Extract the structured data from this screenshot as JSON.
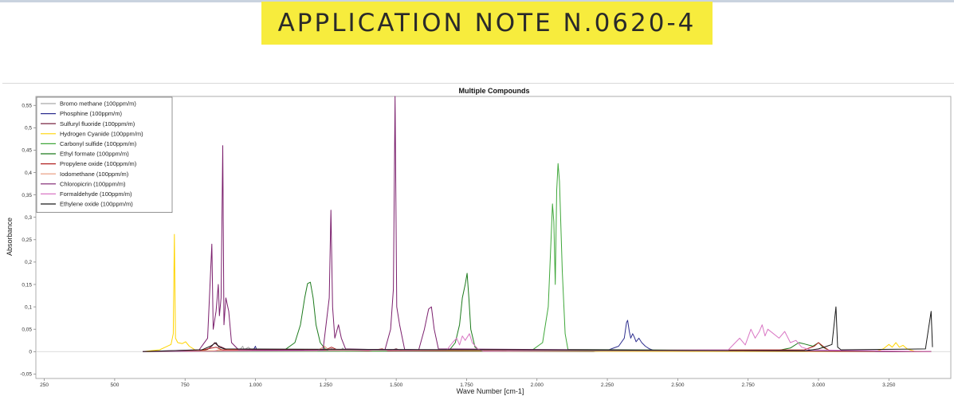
{
  "header": {
    "title": "APPLICATION NOTE N.0620-4"
  },
  "chart_data": {
    "type": "line",
    "title": "Multiple Compounds",
    "xlabel": "Wave Number [cm-1]",
    "ylabel": "Absorbance",
    "xlim": [
      220,
      3470
    ],
    "ylim": [
      -0.06,
      0.57
    ],
    "xticks": [
      250,
      500,
      750,
      1000,
      1250,
      1500,
      1750,
      2000,
      2250,
      2500,
      2750,
      3000,
      3250
    ],
    "xtick_labels": [
      "250",
      "500",
      "750",
      "1.000",
      "1.250",
      "1.500",
      "1.750",
      "2.000",
      "2.250",
      "2.500",
      "2.750",
      "3.000",
      "3.250"
    ],
    "yticks": [
      -0.05,
      0,
      0.05,
      0.1,
      0.15,
      0.2,
      0.25,
      0.3,
      0.35,
      0.4,
      0.45,
      0.5,
      0.55
    ],
    "ytick_labels": [
      "-0,05",
      "0",
      "0,05",
      "0,1",
      "0,15",
      "0,2",
      "0,25",
      "0,3",
      "0,35",
      "0,4",
      "0,45",
      "0,5",
      "0,55"
    ],
    "grid": false,
    "legend_position": "top-left",
    "series": [
      {
        "name": "Bromo methane (100ppm/m)",
        "color": "#a9a9a9",
        "points": [
          [
            600,
            0
          ],
          [
            940,
            0.001
          ],
          [
            955,
            0.012
          ],
          [
            960,
            0.004
          ],
          [
            975,
            0.01
          ],
          [
            990,
            0.002
          ],
          [
            1300,
            0.001
          ],
          [
            1310,
            0.008
          ],
          [
            1320,
            0.001
          ],
          [
            3400,
            0
          ]
        ]
      },
      {
        "name": "Phosphine (100ppm/m)",
        "color": "#2e2f8f",
        "points": [
          [
            600,
            0
          ],
          [
            990,
            0.001
          ],
          [
            1000,
            0.012
          ],
          [
            1005,
            0.002
          ],
          [
            2200,
            0
          ],
          [
            2250,
            0.003
          ],
          [
            2290,
            0.012
          ],
          [
            2310,
            0.03
          ],
          [
            2318,
            0.065
          ],
          [
            2322,
            0.07
          ],
          [
            2328,
            0.045
          ],
          [
            2333,
            0.03
          ],
          [
            2340,
            0.04
          ],
          [
            2346,
            0.032
          ],
          [
            2352,
            0.022
          ],
          [
            2362,
            0.03
          ],
          [
            2372,
            0.02
          ],
          [
            2385,
            0.012
          ],
          [
            2400,
            0.006
          ],
          [
            2420,
            0.002
          ],
          [
            3400,
            0
          ]
        ]
      },
      {
        "name": "Sulfuryl fluoride (100ppm/m)",
        "color": "#6a0d2e",
        "points": [
          [
            600,
            0
          ],
          [
            800,
            0.001
          ],
          [
            830,
            0.005
          ],
          [
            845,
            0.012
          ],
          [
            855,
            0.02
          ],
          [
            865,
            0.014
          ],
          [
            880,
            0.01
          ],
          [
            900,
            0.004
          ],
          [
            1250,
            0.002
          ],
          [
            1270,
            0.006
          ],
          [
            1285,
            0.003
          ],
          [
            1480,
            0.003
          ],
          [
            1500,
            0.006
          ],
          [
            1520,
            0.002
          ],
          [
            3400,
            0
          ]
        ]
      },
      {
        "name": "Hydrogen Cyanide (100ppm/m)",
        "color": "#ffd400",
        "points": [
          [
            600,
            0
          ],
          [
            660,
            0.004
          ],
          [
            680,
            0.01
          ],
          [
            700,
            0.016
          ],
          [
            708,
            0.04
          ],
          [
            712,
            0.262
          ],
          [
            716,
            0.03
          ],
          [
            724,
            0.02
          ],
          [
            740,
            0.018
          ],
          [
            752,
            0.022
          ],
          [
            765,
            0.012
          ],
          [
            790,
            0.002
          ],
          [
            3200,
            0
          ],
          [
            3230,
            0.006
          ],
          [
            3250,
            0.016
          ],
          [
            3262,
            0.01
          ],
          [
            3275,
            0.02
          ],
          [
            3287,
            0.01
          ],
          [
            3300,
            0.014
          ],
          [
            3315,
            0.006
          ],
          [
            3340,
            0.001
          ],
          [
            3400,
            0
          ]
        ]
      },
      {
        "name": "Carbonyl sulfide (100ppm/m)",
        "color": "#3fa73a",
        "points": [
          [
            600,
            0
          ],
          [
            1980,
            0.002
          ],
          [
            2020,
            0.02
          ],
          [
            2040,
            0.1
          ],
          [
            2050,
            0.25
          ],
          [
            2055,
            0.33
          ],
          [
            2060,
            0.29
          ],
          [
            2065,
            0.15
          ],
          [
            2070,
            0.36
          ],
          [
            2075,
            0.42
          ],
          [
            2080,
            0.38
          ],
          [
            2090,
            0.18
          ],
          [
            2100,
            0.04
          ],
          [
            2110,
            0.005
          ],
          [
            3400,
            0
          ]
        ]
      },
      {
        "name": "Ethyl formate (100ppm/m)",
        "color": "#1c7a1c",
        "points": [
          [
            600,
            0
          ],
          [
            1100,
            0.002
          ],
          [
            1140,
            0.02
          ],
          [
            1160,
            0.06
          ],
          [
            1175,
            0.12
          ],
          [
            1185,
            0.152
          ],
          [
            1195,
            0.155
          ],
          [
            1205,
            0.12
          ],
          [
            1215,
            0.06
          ],
          [
            1230,
            0.02
          ],
          [
            1250,
            0.004
          ],
          [
            1690,
            0.004
          ],
          [
            1710,
            0.02
          ],
          [
            1725,
            0.06
          ],
          [
            1735,
            0.12
          ],
          [
            1745,
            0.15
          ],
          [
            1752,
            0.175
          ],
          [
            1758,
            0.12
          ],
          [
            1765,
            0.05
          ],
          [
            1780,
            0.01
          ],
          [
            1800,
            0.002
          ],
          [
            2850,
            0.002
          ],
          [
            2900,
            0.008
          ],
          [
            2930,
            0.02
          ],
          [
            2945,
            0.018
          ],
          [
            2980,
            0.012
          ],
          [
            3000,
            0.02
          ],
          [
            3015,
            0.01
          ],
          [
            3040,
            0.002
          ],
          [
            3400,
            0
          ]
        ]
      },
      {
        "name": "Propylene oxide (100ppm/m)",
        "color": "#b22222",
        "points": [
          [
            600,
            0
          ],
          [
            800,
            0.002
          ],
          [
            830,
            0.006
          ],
          [
            860,
            0.01
          ],
          [
            880,
            0.004
          ],
          [
            1250,
            0.004
          ],
          [
            1270,
            0.01
          ],
          [
            1290,
            0.004
          ],
          [
            1400,
            0.002
          ],
          [
            1450,
            0.006
          ],
          [
            1470,
            0.002
          ],
          [
            2950,
            0.004
          ],
          [
            2985,
            0.012
          ],
          [
            3000,
            0.02
          ],
          [
            3020,
            0.01
          ],
          [
            3040,
            0.002
          ],
          [
            3400,
            0
          ]
        ]
      },
      {
        "name": "Iodomethane (100ppm/m)",
        "color": "#e8967a",
        "points": [
          [
            600,
            0
          ],
          [
            850,
            0.001
          ],
          [
            870,
            0.004
          ],
          [
            890,
            0.002
          ],
          [
            1220,
            0.002
          ],
          [
            1245,
            0.012
          ],
          [
            1260,
            0.004
          ],
          [
            3400,
            0
          ]
        ]
      },
      {
        "name": "Chloropicrin (100ppm/m)",
        "color": "#7b1f6d",
        "points": [
          [
            600,
            0
          ],
          [
            800,
            0.004
          ],
          [
            830,
            0.03
          ],
          [
            845,
            0.24
          ],
          [
            850,
            0.05
          ],
          [
            860,
            0.09
          ],
          [
            868,
            0.15
          ],
          [
            872,
            0.08
          ],
          [
            878,
            0.12
          ],
          [
            884,
            0.46
          ],
          [
            888,
            0.06
          ],
          [
            895,
            0.12
          ],
          [
            905,
            0.09
          ],
          [
            915,
            0.02
          ],
          [
            940,
            0.004
          ],
          [
            1240,
            0.003
          ],
          [
            1262,
            0.12
          ],
          [
            1268,
            0.316
          ],
          [
            1274,
            0.1
          ],
          [
            1282,
            0.03
          ],
          [
            1295,
            0.06
          ],
          [
            1305,
            0.03
          ],
          [
            1320,
            0.006
          ],
          [
            1460,
            0.004
          ],
          [
            1480,
            0.05
          ],
          [
            1490,
            0.14
          ],
          [
            1496,
            0.57
          ],
          [
            1502,
            0.1
          ],
          [
            1512,
            0.06
          ],
          [
            1530,
            0.005
          ],
          [
            1580,
            0.004
          ],
          [
            1600,
            0.05
          ],
          [
            1615,
            0.095
          ],
          [
            1625,
            0.1
          ],
          [
            1635,
            0.05
          ],
          [
            1650,
            0.006
          ],
          [
            3400,
            0
          ]
        ]
      },
      {
        "name": "Formaldehyde (100ppm/m)",
        "color": "#d977c4",
        "points": [
          [
            600,
            0
          ],
          [
            1680,
            0.004
          ],
          [
            1700,
            0.02
          ],
          [
            1715,
            0.03
          ],
          [
            1725,
            0.015
          ],
          [
            1735,
            0.035
          ],
          [
            1745,
            0.025
          ],
          [
            1760,
            0.04
          ],
          [
            1770,
            0.02
          ],
          [
            1790,
            0.006
          ],
          [
            1810,
            0.001
          ],
          [
            2680,
            0.004
          ],
          [
            2720,
            0.03
          ],
          [
            2740,
            0.015
          ],
          [
            2760,
            0.05
          ],
          [
            2775,
            0.03
          ],
          [
            2790,
            0.045
          ],
          [
            2800,
            0.06
          ],
          [
            2810,
            0.035
          ],
          [
            2820,
            0.05
          ],
          [
            2840,
            0.04
          ],
          [
            2860,
            0.03
          ],
          [
            2880,
            0.045
          ],
          [
            2900,
            0.02
          ],
          [
            2920,
            0.025
          ],
          [
            2940,
            0.01
          ],
          [
            2970,
            0.004
          ],
          [
            3400,
            0
          ]
        ]
      },
      {
        "name": "Ethylene oxide (100ppm/m)",
        "color": "#1a1a1a",
        "points": [
          [
            600,
            0
          ],
          [
            810,
            0.004
          ],
          [
            840,
            0.012
          ],
          [
            860,
            0.02
          ],
          [
            870,
            0.01
          ],
          [
            890,
            0.006
          ],
          [
            2950,
            0.002
          ],
          [
            3000,
            0.006
          ],
          [
            3030,
            0.012
          ],
          [
            3048,
            0.016
          ],
          [
            3062,
            0.1
          ],
          [
            3068,
            0.01
          ],
          [
            3080,
            0.004
          ],
          [
            3380,
            0.006
          ],
          [
            3400,
            0.09
          ],
          [
            3405,
            0.01
          ]
        ]
      }
    ]
  }
}
